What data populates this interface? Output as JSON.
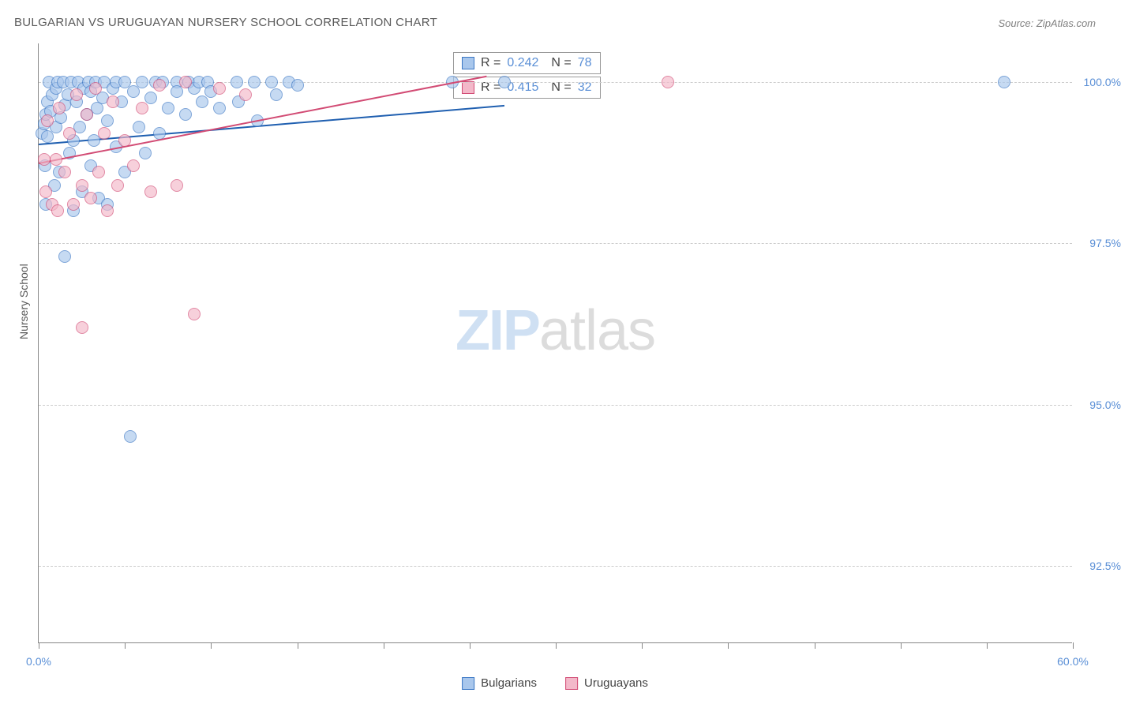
{
  "title": "BULGARIAN VS URUGUAYAN NURSERY SCHOOL CORRELATION CHART",
  "source": "Source: ZipAtlas.com",
  "watermark": {
    "part1": "ZIP",
    "part2": "atlas"
  },
  "y_axis_label": "Nursery School",
  "chart": {
    "type": "scatter",
    "background_color": "#ffffff",
    "grid_color": "#cccccc",
    "axis_color": "#888888",
    "xlim": [
      0,
      60
    ],
    "ylim": [
      91.3,
      100.6
    ],
    "x_ticks_major": [
      0,
      60
    ],
    "x_ticks_minor": [
      5,
      10,
      15,
      20,
      25,
      30,
      35,
      40,
      45,
      50,
      55
    ],
    "x_tick_labels": [
      "0.0%",
      "60.0%"
    ],
    "y_ticks": [
      92.5,
      95.0,
      97.5,
      100.0
    ],
    "y_tick_labels": [
      "92.5%",
      "95.0%",
      "97.5%",
      "100.0%"
    ],
    "marker_radius": 8,
    "marker_opacity": 0.65,
    "series": [
      {
        "name": "Bulgarians",
        "fill_color": "#a9c7ec",
        "stroke_color": "#3a76c4",
        "line_color": "#1f5fb0",
        "R": "0.242",
        "N": "78",
        "trend": {
          "x1": 0,
          "y1": 99.05,
          "x2": 27,
          "y2": 99.65
        },
        "points": [
          [
            0.2,
            99.2
          ],
          [
            0.3,
            99.35
          ],
          [
            0.35,
            98.7
          ],
          [
            0.4,
            99.5
          ],
          [
            0.4,
            98.1
          ],
          [
            0.5,
            99.7
          ],
          [
            0.5,
            99.15
          ],
          [
            0.6,
            100.0
          ],
          [
            0.7,
            99.55
          ],
          [
            0.8,
            99.8
          ],
          [
            0.9,
            98.4
          ],
          [
            1.0,
            99.9
          ],
          [
            1.0,
            99.3
          ],
          [
            1.1,
            100.0
          ],
          [
            1.2,
            98.6
          ],
          [
            1.3,
            99.45
          ],
          [
            1.4,
            100.0
          ],
          [
            1.5,
            97.3
          ],
          [
            1.5,
            99.65
          ],
          [
            1.7,
            99.8
          ],
          [
            1.8,
            98.9
          ],
          [
            1.9,
            100.0
          ],
          [
            2.0,
            99.1
          ],
          [
            2.0,
            98.0
          ],
          [
            2.2,
            99.7
          ],
          [
            2.3,
            100.0
          ],
          [
            2.4,
            99.3
          ],
          [
            2.5,
            98.3
          ],
          [
            2.6,
            99.9
          ],
          [
            2.8,
            99.5
          ],
          [
            2.9,
            100.0
          ],
          [
            3.0,
            98.7
          ],
          [
            3.0,
            99.85
          ],
          [
            3.2,
            99.1
          ],
          [
            3.3,
            100.0
          ],
          [
            3.4,
            99.6
          ],
          [
            3.5,
            98.2
          ],
          [
            3.7,
            99.75
          ],
          [
            3.8,
            100.0
          ],
          [
            4.0,
            99.4
          ],
          [
            4.0,
            98.1
          ],
          [
            4.3,
            99.9
          ],
          [
            4.5,
            100.0
          ],
          [
            4.5,
            99.0
          ],
          [
            4.8,
            99.7
          ],
          [
            5.0,
            100.0
          ],
          [
            5.0,
            98.6
          ],
          [
            5.3,
            94.5
          ],
          [
            5.5,
            99.85
          ],
          [
            5.8,
            99.3
          ],
          [
            6.0,
            100.0
          ],
          [
            6.2,
            98.9
          ],
          [
            6.5,
            99.75
          ],
          [
            6.8,
            100.0
          ],
          [
            7.0,
            99.2
          ],
          [
            7.2,
            100.0
          ],
          [
            7.5,
            99.6
          ],
          [
            8.0,
            100.0
          ],
          [
            8.0,
            99.85
          ],
          [
            8.5,
            99.5
          ],
          [
            8.7,
            100.0
          ],
          [
            9.0,
            99.9
          ],
          [
            9.3,
            100.0
          ],
          [
            9.5,
            99.7
          ],
          [
            9.8,
            100.0
          ],
          [
            10.0,
            99.85
          ],
          [
            10.5,
            99.6
          ],
          [
            11.5,
            100.0
          ],
          [
            11.6,
            99.7
          ],
          [
            12.5,
            100.0
          ],
          [
            12.7,
            99.4
          ],
          [
            13.5,
            100.0
          ],
          [
            13.8,
            99.8
          ],
          [
            14.5,
            100.0
          ],
          [
            15.0,
            99.95
          ],
          [
            24.0,
            100.0
          ],
          [
            27.0,
            100.0
          ],
          [
            56.0,
            100.0
          ]
        ]
      },
      {
        "name": "Uruguayans",
        "fill_color": "#f3b8c9",
        "stroke_color": "#d24b74",
        "line_color": "#d24b74",
        "R": "0.415",
        "N": "32",
        "trend": {
          "x1": 0,
          "y1": 98.75,
          "x2": 26,
          "y2": 100.1
        },
        "points": [
          [
            0.3,
            98.8
          ],
          [
            0.4,
            98.3
          ],
          [
            0.5,
            99.4
          ],
          [
            0.8,
            98.1
          ],
          [
            1.0,
            98.8
          ],
          [
            1.1,
            98.0
          ],
          [
            1.2,
            99.6
          ],
          [
            1.5,
            98.6
          ],
          [
            1.8,
            99.2
          ],
          [
            2.0,
            98.1
          ],
          [
            2.2,
            99.8
          ],
          [
            2.5,
            96.2
          ],
          [
            2.5,
            98.4
          ],
          [
            2.8,
            99.5
          ],
          [
            3.0,
            98.2
          ],
          [
            3.3,
            99.9
          ],
          [
            3.5,
            98.6
          ],
          [
            3.8,
            99.2
          ],
          [
            4.0,
            98.0
          ],
          [
            4.3,
            99.7
          ],
          [
            4.6,
            98.4
          ],
          [
            5.0,
            99.1
          ],
          [
            5.5,
            98.7
          ],
          [
            6.0,
            99.6
          ],
          [
            6.5,
            98.3
          ],
          [
            7.0,
            99.95
          ],
          [
            8.0,
            98.4
          ],
          [
            8.5,
            100.0
          ],
          [
            9.0,
            96.4
          ],
          [
            10.5,
            99.9
          ],
          [
            12.0,
            99.8
          ],
          [
            36.5,
            100.0
          ]
        ]
      }
    ]
  },
  "stats_boxes": [
    {
      "swatch_fill": "#a9c7ec",
      "swatch_stroke": "#3a76c4",
      "R_label": "R =",
      "R": "0.242",
      "N_label": "N =",
      "N": "78"
    },
    {
      "swatch_fill": "#f3b8c9",
      "swatch_stroke": "#d24b74",
      "R_label": "R =",
      "R": "0.415",
      "N_label": "N =",
      "N": "32"
    }
  ],
  "legend": [
    {
      "swatch_fill": "#a9c7ec",
      "swatch_stroke": "#3a76c4",
      "label": "Bulgarians"
    },
    {
      "swatch_fill": "#f3b8c9",
      "swatch_stroke": "#d24b74",
      "label": "Uruguayans"
    }
  ]
}
